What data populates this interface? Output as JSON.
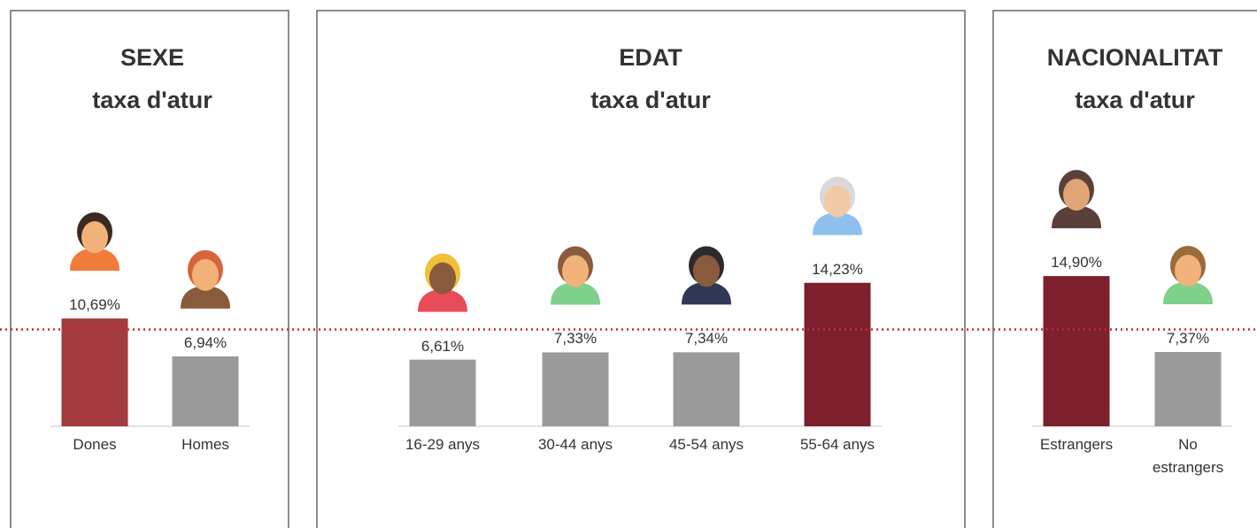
{
  "chart_data": [
    {
      "type": "bar",
      "title": "SEXE",
      "subtitle": "taxa d'atur",
      "categories": [
        "Dones",
        "Homes"
      ],
      "values": [
        10.69,
        6.94
      ],
      "value_labels": [
        "10,69%",
        "6,94%"
      ],
      "colors": [
        "#a33a3d",
        "#9a9a9a"
      ]
    },
    {
      "type": "bar",
      "title": "EDAT",
      "subtitle": "taxa d'atur",
      "categories": [
        "16-29 anys",
        "30-44 anys",
        "45-54 anys",
        "55-64 anys"
      ],
      "values": [
        6.61,
        7.33,
        7.34,
        14.23
      ],
      "value_labels": [
        "6,61%",
        "7,33%",
        "7,34%",
        "14,23%"
      ],
      "colors": [
        "#9a9a9a",
        "#9a9a9a",
        "#9a9a9a",
        "#7d1f2c"
      ]
    },
    {
      "type": "bar",
      "title": "NACIONALITAT",
      "subtitle": "taxa d'atur",
      "categories": [
        "Estrangers",
        "No estrangers"
      ],
      "values": [
        14.9,
        7.37
      ],
      "value_labels": [
        "14,90%",
        "7,37%"
      ],
      "colors": [
        "#7d1f2c",
        "#9a9a9a"
      ]
    }
  ],
  "reference_line": {
    "value": 9.6,
    "color": "#c62828"
  }
}
